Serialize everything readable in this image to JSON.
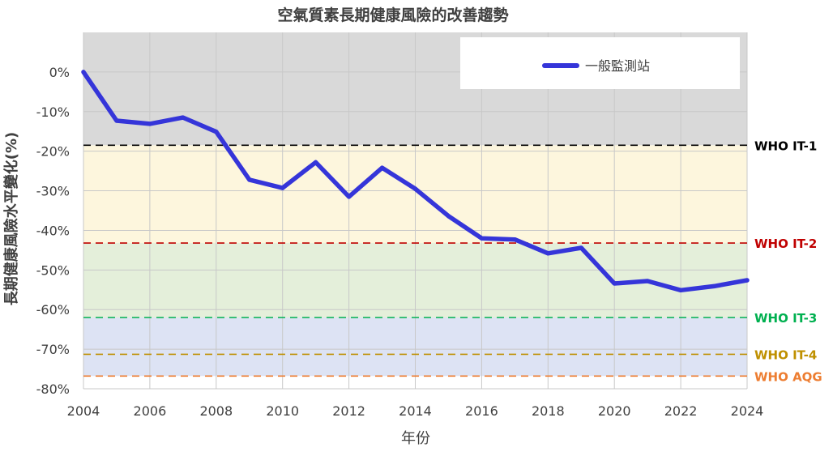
{
  "chart_data": {
    "type": "line",
    "title": "空氣質素長期健康風險的改善趨勢",
    "xlabel": "年份",
    "ylabel": "長期健康風險水平變化(%)",
    "xlim": [
      2004,
      2024
    ],
    "ylim": [
      -80,
      0
    ],
    "y_axis_top": 10,
    "x_ticks": [
      2004,
      2006,
      2008,
      2010,
      2012,
      2014,
      2016,
      2018,
      2020,
      2022,
      2024
    ],
    "y_ticks": [
      0,
      -10,
      -20,
      -30,
      -40,
      -50,
      -60,
      -70,
      -80
    ],
    "y_tick_labels": [
      "0%",
      "-10%",
      "-20%",
      "-30%",
      "-40%",
      "-50%",
      "-60%",
      "-70%",
      "-80%"
    ],
    "grid": true,
    "legend_position": "top-right",
    "series": [
      {
        "name": "一般監測站",
        "color": "#3535d9",
        "x": [
          2004,
          2005,
          2006,
          2007,
          2008,
          2009,
          2010,
          2011,
          2012,
          2013,
          2014,
          2015,
          2016,
          2017,
          2018,
          2019,
          2020,
          2021,
          2022,
          2023,
          2024
        ],
        "y": [
          0,
          -12.3,
          -13.1,
          -11.5,
          -15.1,
          -27.2,
          -29.3,
          -22.8,
          -31.5,
          -24.2,
          -29.5,
          -36.4,
          -42.0,
          -42.3,
          -45.8,
          -44.4,
          -53.4,
          -52.8,
          -55.1,
          -54.1,
          -52.6
        ]
      }
    ],
    "reference_lines": [
      {
        "label": "WHO IT-1",
        "y": -18.5,
        "color": "#000000",
        "band_color": "#fdf6dd"
      },
      {
        "label": "WHO IT-2",
        "y": -43.2,
        "color": "#c00000",
        "band_color": "#e4efda"
      },
      {
        "label": "WHO IT-3",
        "y": -62.0,
        "color": "#00b050",
        "band_color": "#dde3f4"
      },
      {
        "label": "WHO IT-4",
        "y": -71.3,
        "color": "#bf9000",
        "band_color": "#dde3f4"
      },
      {
        "label": "WHO AQG",
        "y": -76.8,
        "color": "#ed7d31",
        "band_color": "#ffffff"
      }
    ],
    "top_band_color": "#d9d9d9"
  }
}
